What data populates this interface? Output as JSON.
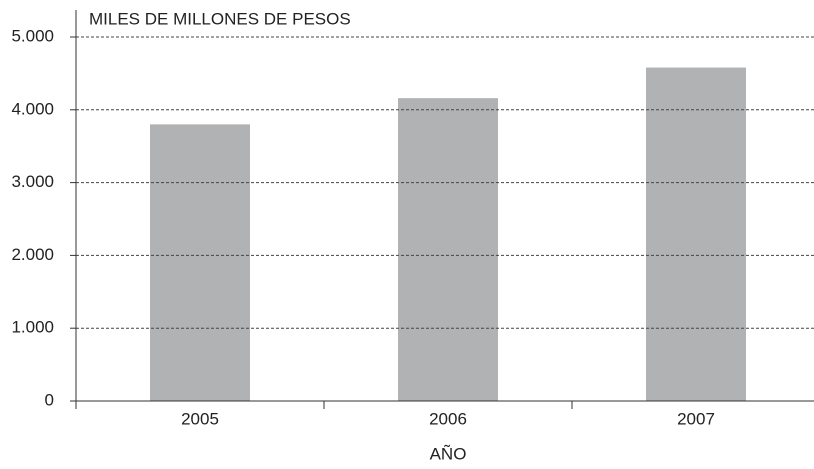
{
  "chart_data": {
    "type": "bar",
    "title": "MILES DE MILLONES DE PESOS",
    "x_label": "AÑO",
    "categories": [
      "2005",
      "2006",
      "2007"
    ],
    "values": [
      3800,
      4160,
      4580
    ],
    "color": "#b1b2b4",
    "ylim": [
      0,
      5000
    ],
    "yticks": [
      0,
      {
        "value": 1000,
        "label": "1.000"
      },
      {
        "value": 2000,
        "label": "2.000"
      },
      {
        "value": 3000,
        "label": "3.000"
      },
      {
        "value": 4000,
        "label": "4.000"
      },
      {
        "value": 5000,
        "label": "5.000"
      }
    ],
    "grid": true
  }
}
